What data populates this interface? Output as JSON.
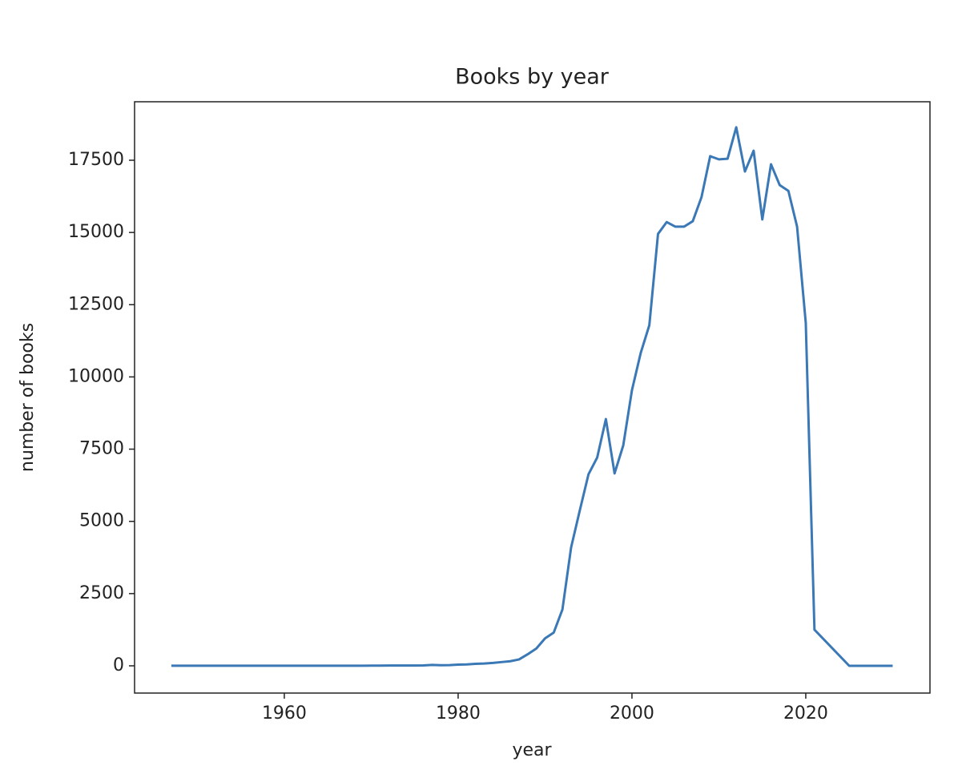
{
  "chart_data": {
    "type": "line",
    "title": "Books by year",
    "xlabel": "year",
    "ylabel": "number of books",
    "x": [
      1947,
      1948,
      1949,
      1950,
      1951,
      1952,
      1953,
      1954,
      1955,
      1956,
      1957,
      1958,
      1959,
      1960,
      1961,
      1962,
      1963,
      1964,
      1965,
      1966,
      1967,
      1968,
      1969,
      1970,
      1971,
      1972,
      1973,
      1974,
      1975,
      1976,
      1977,
      1978,
      1979,
      1980,
      1981,
      1982,
      1983,
      1984,
      1985,
      1986,
      1987,
      1988,
      1989,
      1990,
      1991,
      1992,
      1993,
      1994,
      1995,
      1996,
      1997,
      1998,
      1999,
      2000,
      2001,
      2002,
      2003,
      2004,
      2005,
      2006,
      2007,
      2008,
      2009,
      2010,
      2011,
      2012,
      2013,
      2014,
      2015,
      2016,
      2017,
      2018,
      2019,
      2020,
      2021,
      2025,
      2026,
      2027,
      2028,
      2029,
      2030
    ],
    "series": [
      {
        "name": "books",
        "color": "#3b78b6",
        "values": [
          2,
          2,
          3,
          3,
          4,
          5,
          4,
          3,
          3,
          3,
          3,
          3,
          3,
          4,
          4,
          4,
          4,
          4,
          4,
          4,
          4,
          5,
          5,
          6,
          8,
          10,
          10,
          12,
          12,
          15,
          30,
          20,
          25,
          40,
          50,
          70,
          80,
          100,
          130,
          160,
          220,
          400,
          600,
          950,
          1150,
          1950,
          4100,
          5380,
          6630,
          7210,
          8540,
          6660,
          7630,
          9540,
          10820,
          11790,
          14950,
          15360,
          15200,
          15200,
          15390,
          16220,
          17640,
          17530,
          17550,
          18640,
          17110,
          17830,
          15450,
          17360,
          16640,
          16440,
          15200,
          11870,
          1250,
          0,
          0,
          0,
          0,
          0,
          0
        ]
      }
    ],
    "xlim": [
      1942.77,
      2034.29
    ],
    "xticks": [
      1960,
      1980,
      2000,
      2020
    ],
    "ylim": [
      -943,
      19524
    ],
    "yticks": [
      0,
      2500,
      5000,
      7500,
      10000,
      12500,
      15000,
      17500
    ]
  }
}
